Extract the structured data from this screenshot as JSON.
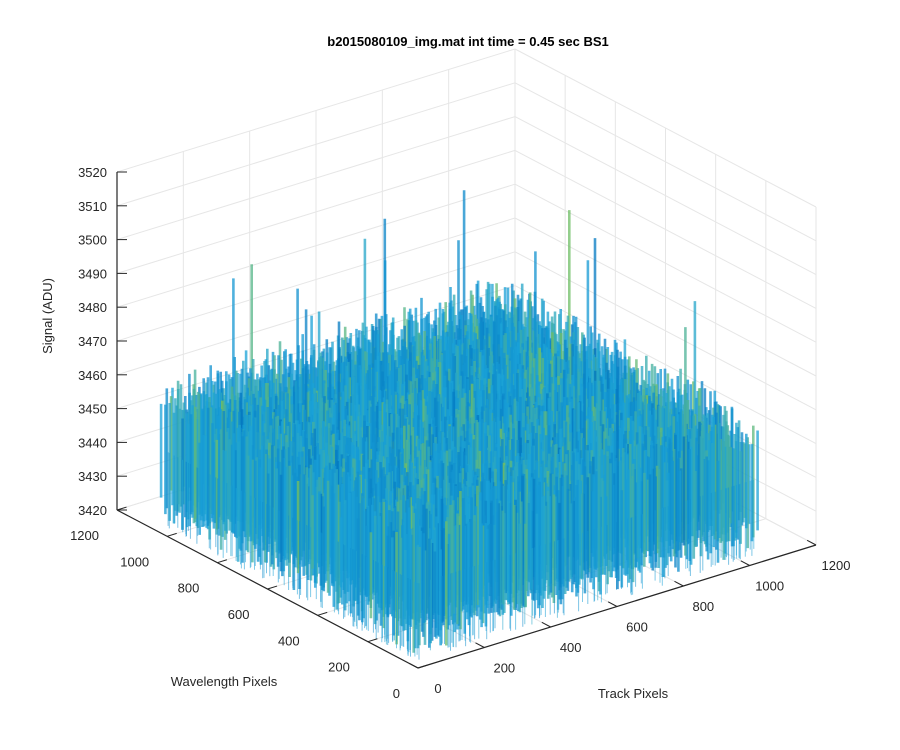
{
  "chart_data": {
    "type": "surface",
    "title": "b2015080109_img.mat int time = 0.45 sec   BS1",
    "xlabel": "Track Pixels",
    "ylabel": "Wavelength Pixels",
    "zlabel": "Signal (ADU)",
    "xlim": [
      0,
      1200
    ],
    "ylim": [
      0,
      1200
    ],
    "zlim": [
      3420,
      3520
    ],
    "xticks": [
      "0",
      "200",
      "400",
      "600",
      "800",
      "1000",
      "1200"
    ],
    "yticks": [
      "0",
      "200",
      "400",
      "600",
      "800",
      "1000",
      "1200"
    ],
    "zticks": [
      "3420",
      "3430",
      "3440",
      "3450",
      "3460",
      "3470",
      "3480",
      "3490",
      "3500",
      "3510",
      "3520"
    ],
    "surface": {
      "x_range": [
        0,
        1024
      ],
      "y_range": [
        0,
        1024
      ],
      "mean_signal": 3445,
      "typical_min": 3425,
      "typical_max": 3468,
      "outlier_max": 3500,
      "colormap": "parula"
    },
    "grid": true,
    "box": false,
    "colors": {
      "surface_low": "#0072bd",
      "surface_mid": "#1aa2d8",
      "surface_high": "#8ec83c",
      "grid": "#e6e6e6",
      "axis": "#262626"
    }
  }
}
